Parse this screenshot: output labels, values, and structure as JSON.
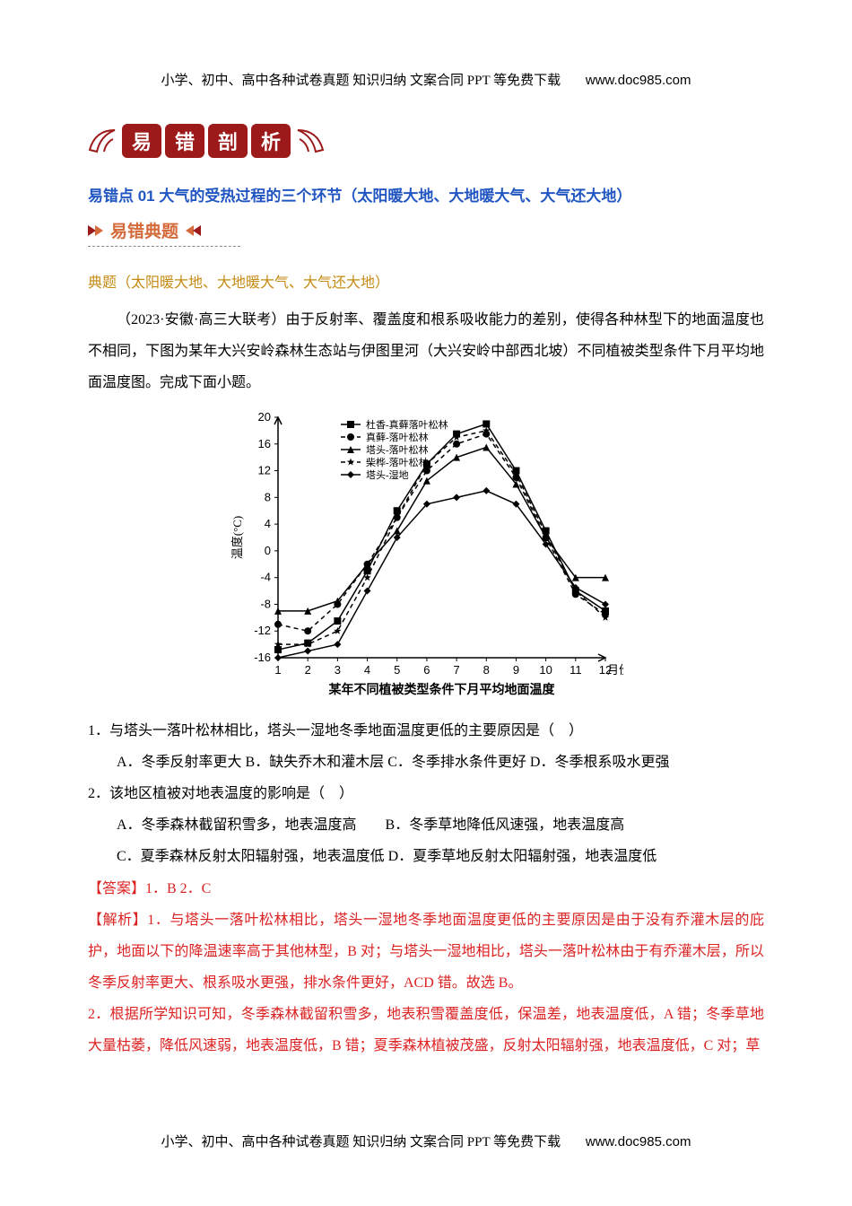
{
  "header_footer": {
    "text": "小学、初中、高中各种试卷真题 知识归纳 文案合同 PPT 等免费下载",
    "url": "www.doc985.com"
  },
  "banner": {
    "chars": [
      "易",
      "错",
      "剖",
      "析"
    ]
  },
  "section_title": "易错点 01 大气的受热过程的三个环节（太阳暖大地、大地暖大气、大气还大地）",
  "sub_heading": "易错典题",
  "dianti": "典题（太阳暖大地、大地暖大气、大气还大地）",
  "passage": "（2023·安徽·高三大联考）由于反射率、覆盖度和根系吸收能力的差别，使得各种林型下的地面温度也不相同，下图为某年大兴安岭森林生态站与伊图里河（大兴安岭中部西北坡）不同植被类型条件下月平均地面温度图。完成下面小题。",
  "chart": {
    "type": "line",
    "title": "某年不同植被类型条件下月平均地面温度",
    "x_label": "月份",
    "y_label": "温度(°C)",
    "x_values": [
      1,
      2,
      3,
      4,
      5,
      6,
      7,
      8,
      9,
      10,
      11,
      12
    ],
    "y_ticks": [
      -16,
      -12,
      -8,
      -4,
      0,
      4,
      8,
      12,
      16,
      20
    ],
    "ylim": [
      -16,
      20
    ],
    "background_color": "#ffffff",
    "axis_color": "#000000",
    "label_fontsize": 13,
    "title_fontsize": 14,
    "line_width": 1.5,
    "series": [
      {
        "name": "杜香-真藓落叶松林",
        "marker": "square",
        "dash": "solid",
        "data": [
          -14.8,
          -13.8,
          -10.5,
          -3,
          6,
          13,
          17.5,
          19,
          12,
          3,
          -6,
          -9
        ]
      },
      {
        "name": "真藓-落叶松林",
        "marker": "circle",
        "dash": "dash",
        "data": [
          -11,
          -12,
          -8,
          -2,
          5,
          12,
          16,
          17.5,
          11,
          2,
          -6.5,
          -9.5
        ]
      },
      {
        "name": "塔头-落叶松林",
        "marker": "triangle",
        "dash": "solid",
        "data": [
          -9,
          -9,
          -7.5,
          -2,
          3,
          10.5,
          14,
          15.5,
          10,
          2,
          -4,
          -4
        ]
      },
      {
        "name": "柴桦-落叶松林",
        "marker": "star",
        "dash": "dash",
        "data": [
          -14,
          -14,
          -12,
          -4,
          5,
          13,
          17,
          18,
          11.5,
          2.5,
          -6,
          -10
        ]
      },
      {
        "name": "塔头-湿地",
        "marker": "diamond",
        "dash": "solid",
        "data": [
          -16,
          -15,
          -14,
          -6,
          2,
          7,
          8,
          9,
          7,
          1,
          -5.5,
          -8
        ]
      }
    ]
  },
  "questions": [
    {
      "num": "1．",
      "stem": "与塔头一落叶松林相比，塔头一湿地冬季地面温度更低的主要原因是（　）",
      "options_line": "A．冬季反射率更大 B．缺失乔木和灌木层 C．冬季排水条件更好 D．冬季根系吸水更强"
    },
    {
      "num": "2．",
      "stem": "该地区植被对地表温度的影响是（　）",
      "options": [
        "A．冬季森林截留积雪多，地表温度高　　B．冬季草地降低风速强，地表温度高",
        "C．夏季森林反射太阳辐射强，地表温度低 D．夏季草地反射太阳辐射强，地表温度低"
      ]
    }
  ],
  "answer": "【答案】1．B 2．C",
  "explanation": [
    "【解析】1．与塔头一落叶松林相比，塔头一湿地冬季地面温度更低的主要原因是由于没有乔灌木层的庇护，地面以下的降温速率高于其他林型，B 对；与塔头一湿地相比，塔头一落叶松林由于有乔灌木层，所以冬季反射率更大、根系吸水更强，排水条件更好，ACD 错。故选 B。",
    "2．根据所学知识可知，冬季森林截留积雪多，地表积雪覆盖度低，保温差，地表温度低，A 错；冬季草地大量枯萎，降低风速弱，地表温度低，B 错；夏季森林植被茂盛，反射太阳辐射强，地表温度低，C 对；草"
  ]
}
